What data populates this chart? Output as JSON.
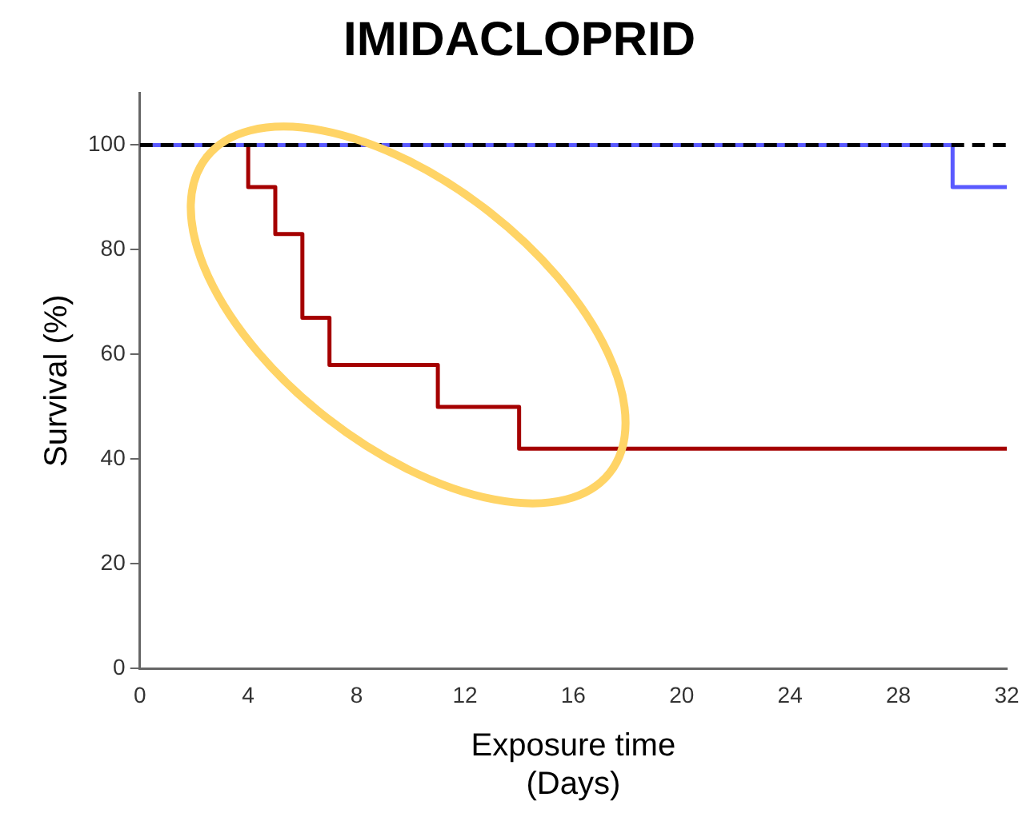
{
  "chart_data": {
    "type": "step",
    "title": "IMIDACLOPRID",
    "xlabel": "Exposure time\n(Days)",
    "ylabel": "Survival (%)",
    "xlim": [
      0,
      32
    ],
    "xticks": [
      0,
      4,
      8,
      12,
      16,
      20,
      24,
      28,
      32
    ],
    "ylim": [
      0,
      110
    ],
    "yticks": [
      0,
      20,
      40,
      60,
      80,
      100
    ],
    "grid": false,
    "legend": false,
    "marker": "none",
    "series": [
      {
        "color": "#a50000",
        "x": [
          0,
          4,
          5,
          6,
          7,
          11,
          14,
          32
        ],
        "values": [
          100,
          92,
          83,
          67,
          58,
          50,
          42,
          42
        ]
      },
      {
        "color": "#5a5aff",
        "x": [
          0,
          30,
          32
        ],
        "values": [
          100,
          92,
          92
        ]
      },
      {
        "color": "#000000",
        "x": [
          0,
          32
        ],
        "values": [
          100,
          100
        ],
        "line_style": "dashed"
      }
    ]
  }
}
